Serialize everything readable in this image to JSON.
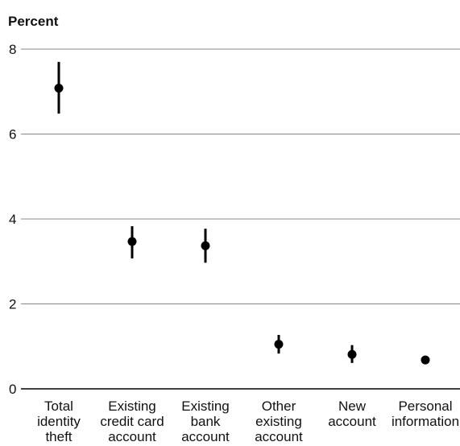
{
  "chart_data": {
    "type": "scatter",
    "ylabel": "Percent",
    "xlabel": "",
    "title": "",
    "ylim": [
      0,
      8
    ],
    "yticks": [
      0,
      2,
      4,
      6,
      8
    ],
    "grid": true,
    "categories": [
      [
        "Total",
        "identity",
        "theft"
      ],
      [
        "Existing",
        "credit card",
        "account"
      ],
      [
        "Existing",
        "bank",
        "account"
      ],
      [
        "Other",
        "existing",
        "account"
      ],
      [
        "New",
        "account"
      ],
      [
        "Personal",
        "information"
      ]
    ],
    "values": [
      7.08,
      3.47,
      3.37,
      1.05,
      0.81,
      0.68
    ],
    "error_low": [
      6.48,
      3.07,
      2.97,
      0.83,
      0.61,
      0.61
    ],
    "error_high": [
      7.7,
      3.83,
      3.77,
      1.27,
      1.03,
      0.73
    ]
  }
}
